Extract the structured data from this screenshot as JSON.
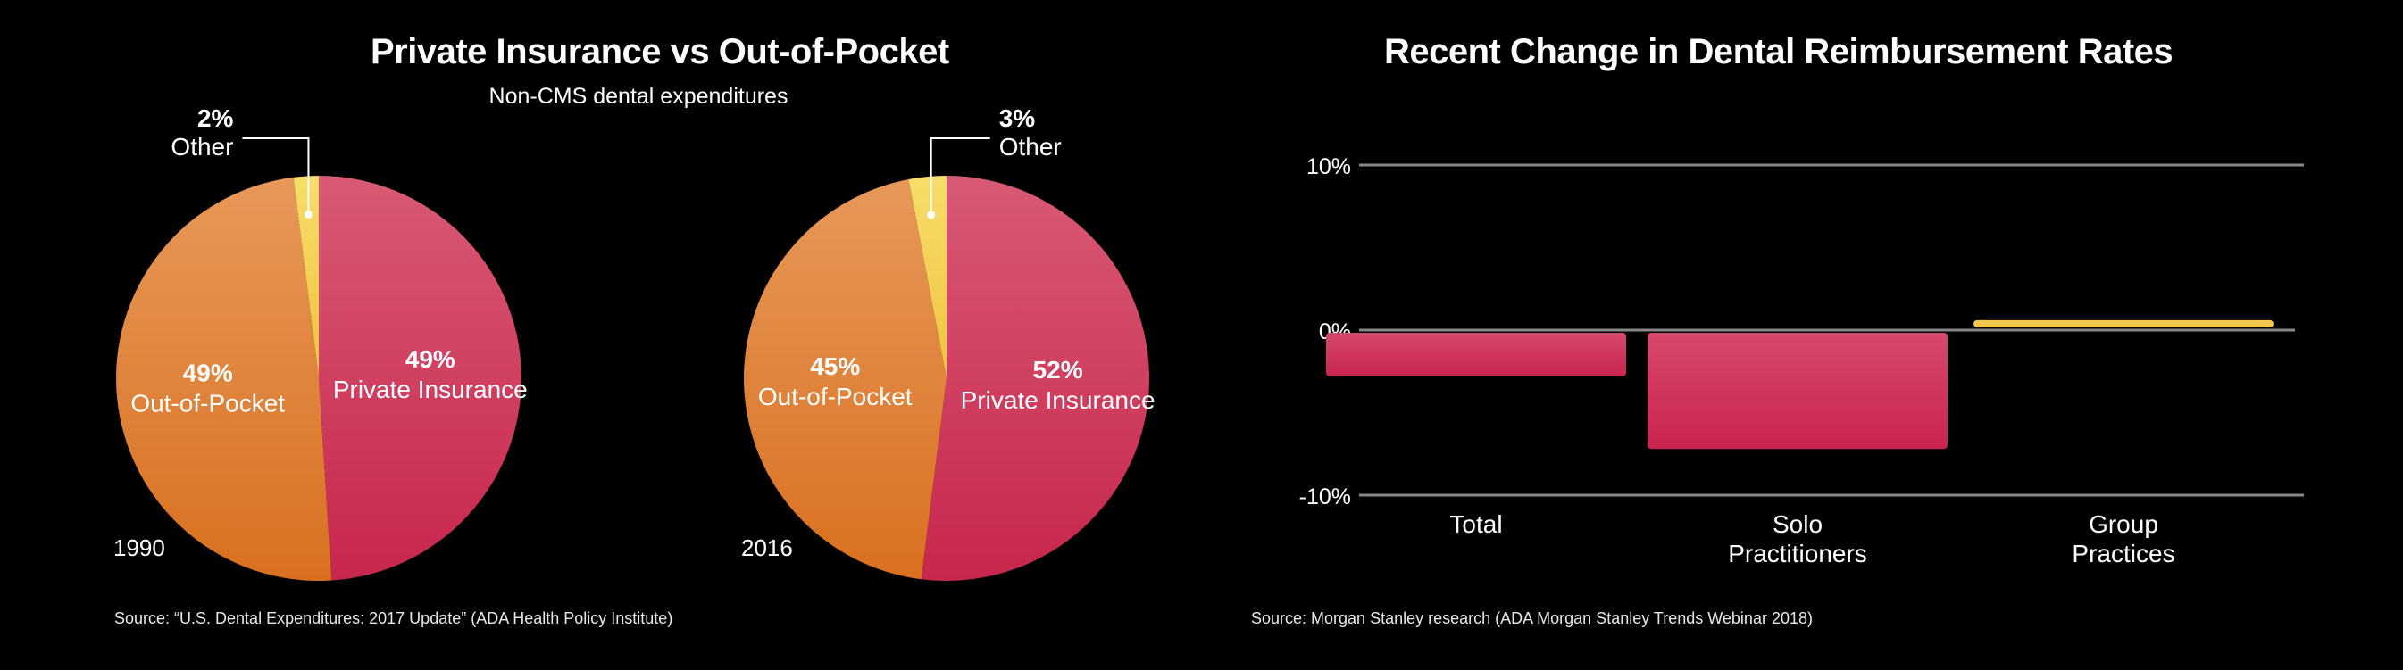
{
  "colors": {
    "private_insurance": "#d03058",
    "out_of_pocket": "#e07c32",
    "other": "#f3d152",
    "gridline": "#888888",
    "bar_negative": "#c92450",
    "bar_positive": "#f2c84b",
    "background": "#000000"
  },
  "chart_data": [
    {
      "type": "pie",
      "title": "Private Insurance vs Out-of-Pocket",
      "subtitle": "Non-CMS dental expenditures",
      "source": "Source: “U.S. Dental Expenditures: 2017 Update” (ADA Health Policy Institute)",
      "pies": [
        {
          "year": "1990",
          "slices": [
            {
              "label": "Private Insurance",
              "value": 49,
              "value_label": "49%",
              "color_key": "private_insurance"
            },
            {
              "label": "Out-of-Pocket",
              "value": 49,
              "value_label": "49%",
              "color_key": "out_of_pocket"
            },
            {
              "label": "Other",
              "value": 2,
              "value_label": "2%",
              "color_key": "other"
            }
          ]
        },
        {
          "year": "2016",
          "slices": [
            {
              "label": "Private Insurance",
              "value": 52,
              "value_label": "52%",
              "color_key": "private_insurance"
            },
            {
              "label": "Out-of-Pocket",
              "value": 45,
              "value_label": "45%",
              "color_key": "out_of_pocket"
            },
            {
              "label": "Other",
              "value": 3,
              "value_label": "3%",
              "color_key": "other"
            }
          ]
        }
      ]
    },
    {
      "type": "bar",
      "title": "Recent Change in Dental Reimbursement Rates",
      "source": "Source: Morgan Stanley research (ADA Morgan Stanley Trends Webinar 2018)",
      "categories": [
        [
          "Total"
        ],
        [
          "Solo",
          "Practitioners"
        ],
        [
          "Group",
          "Practices"
        ]
      ],
      "values": [
        -2.8,
        -7.2,
        0.6
      ],
      "ylim": [
        -10,
        10
      ],
      "yticks": [
        10,
        0,
        -10
      ],
      "ytick_labels": [
        "10%",
        "0%",
        "-10%"
      ]
    }
  ]
}
